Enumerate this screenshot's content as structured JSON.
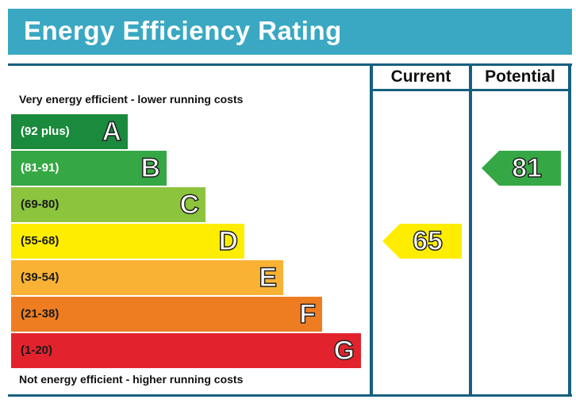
{
  "title": "Energy Efficiency Rating",
  "columns": {
    "current": "Current",
    "potential": "Potential"
  },
  "top_note": "Very energy efficient - lower running costs",
  "bottom_note": "Not energy efficient - higher running costs",
  "colors": {
    "title_bar": "#3aa8c2",
    "frame": "#15607e"
  },
  "chart_data": {
    "type": "bar",
    "title": "Energy Efficiency Rating",
    "categories": [
      "A",
      "B",
      "C",
      "D",
      "E",
      "F",
      "G"
    ],
    "bands": [
      {
        "letter": "A",
        "range": "(92 plus)",
        "color": "#1a8a3c",
        "light_text": true
      },
      {
        "letter": "B",
        "range": "(81-91)",
        "color": "#35a845",
        "light_text": true
      },
      {
        "letter": "C",
        "range": "(69-80)",
        "color": "#8cc43e",
        "light_text": false
      },
      {
        "letter": "D",
        "range": "(55-68)",
        "color": "#ffed00",
        "light_text": false
      },
      {
        "letter": "E",
        "range": "(39-54)",
        "color": "#f9b234",
        "light_text": false
      },
      {
        "letter": "F",
        "range": "(21-38)",
        "color": "#ee7d22",
        "light_text": false
      },
      {
        "letter": "G",
        "range": "(1-20)",
        "color": "#e2232d",
        "light_text": false
      }
    ],
    "series": [
      {
        "name": "Current",
        "value": 65,
        "band": "D",
        "color": "#ffed00"
      },
      {
        "name": "Potential",
        "value": 81,
        "band": "B",
        "color": "#35a845"
      }
    ]
  }
}
